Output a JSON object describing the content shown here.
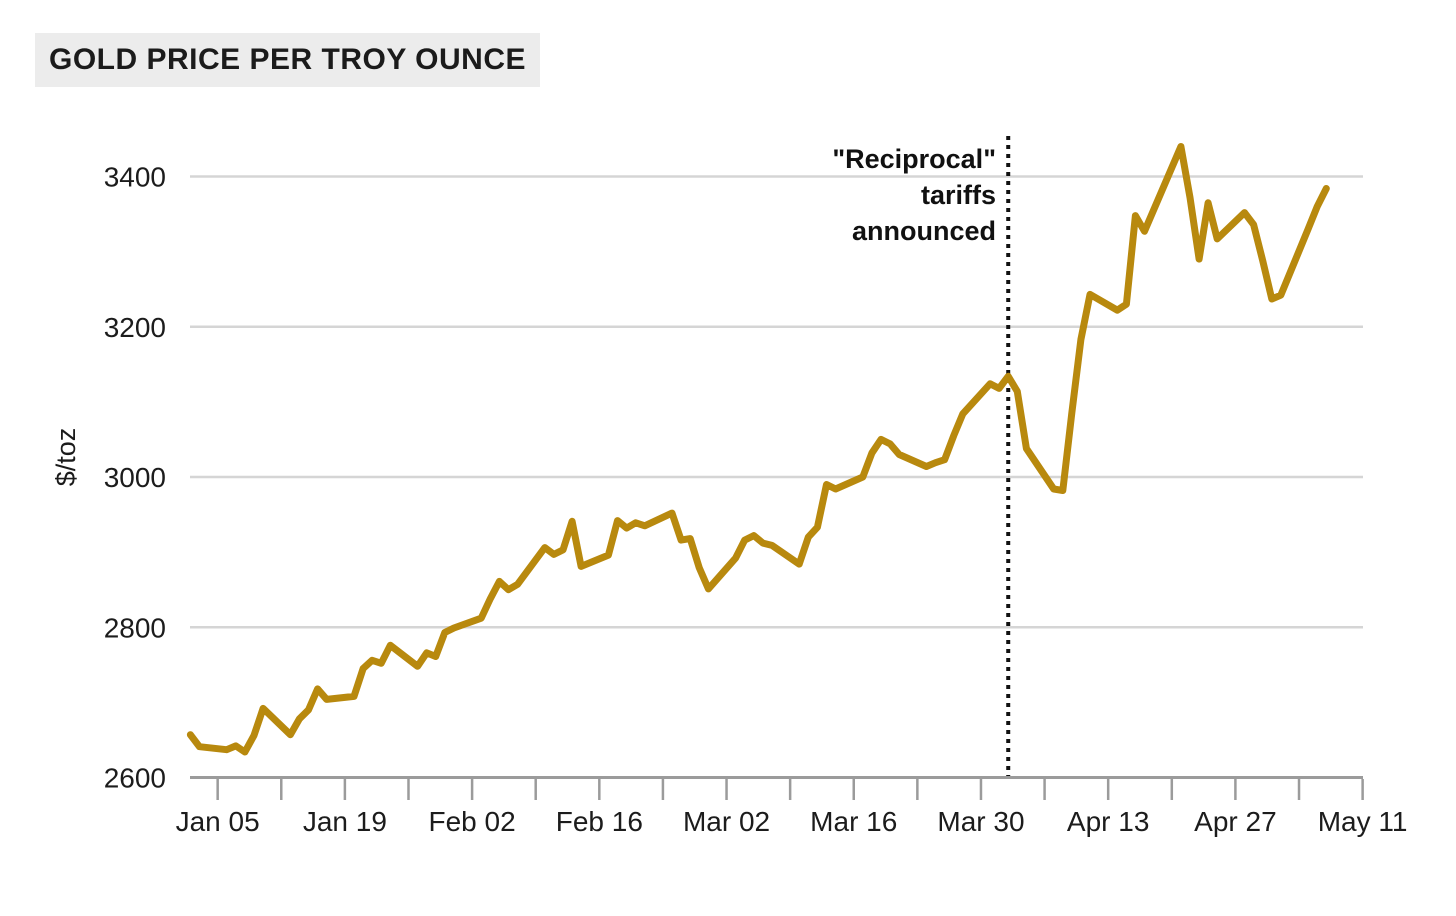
{
  "title": "GOLD PRICE PER TROY OUNCE",
  "y_axis": {
    "label": "$/toz",
    "ticks": [
      2600,
      2800,
      3000,
      3200,
      3400
    ]
  },
  "x_axis": {
    "ticks": [
      {
        "date": "Jan 05",
        "label": "Jan 05"
      },
      {
        "date": "Jan 12",
        "label": ""
      },
      {
        "date": "Jan 19",
        "label": "Jan 19"
      },
      {
        "date": "Jan 26",
        "label": ""
      },
      {
        "date": "Feb 02",
        "label": "Feb 02"
      },
      {
        "date": "Feb 09",
        "label": ""
      },
      {
        "date": "Feb 16",
        "label": "Feb 16"
      },
      {
        "date": "Feb 23",
        "label": ""
      },
      {
        "date": "Mar 02",
        "label": "Mar 02"
      },
      {
        "date": "Mar 09",
        "label": ""
      },
      {
        "date": "Mar 16",
        "label": "Mar 16"
      },
      {
        "date": "Mar 23",
        "label": ""
      },
      {
        "date": "Mar 30",
        "label": "Mar 30"
      },
      {
        "date": "Apr 06",
        "label": ""
      },
      {
        "date": "Apr 13",
        "label": "Apr 13"
      },
      {
        "date": "Apr 20",
        "label": ""
      },
      {
        "date": "Apr 27",
        "label": "Apr 27"
      },
      {
        "date": "May 04",
        "label": ""
      },
      {
        "date": "May 11",
        "label": "May 11"
      }
    ]
  },
  "annotation": {
    "line1": "\"Reciprocal\"",
    "line2": "tariffs",
    "line3": "announced",
    "event_date": "Apr 02"
  },
  "colors": {
    "line": "#B8890E",
    "grid": "#D5D5D5",
    "axis": "#9B9B9B",
    "event_line": "#111111",
    "title_bg": "#ECECEC",
    "text": "#1C1C1C"
  },
  "chart_data": {
    "type": "line",
    "title": "GOLD PRICE PER TROY OUNCE",
    "ylabel": "$/toz",
    "ylim": [
      2600,
      3460
    ],
    "x_range": [
      "Jan 02",
      "May 11"
    ],
    "grid": "horizontal-only",
    "legend": "none",
    "annotation": "\"Reciprocal\" tariffs announced — dotted vertical line at Apr 02",
    "series": [
      {
        "name": "Gold price ($ per troy ounce)",
        "points": [
          [
            "Jan 02",
            2657
          ],
          [
            "Jan 03",
            2641
          ],
          [
            "Jan 06",
            2637
          ],
          [
            "Jan 07",
            2642
          ],
          [
            "Jan 08",
            2634
          ],
          [
            "Jan 09",
            2656
          ],
          [
            "Jan 10",
            2692
          ],
          [
            "Jan 13",
            2657
          ],
          [
            "Jan 14",
            2678
          ],
          [
            "Jan 15",
            2690
          ],
          [
            "Jan 16",
            2718
          ],
          [
            "Jan 17",
            2704
          ],
          [
            "Jan 20",
            2708
          ],
          [
            "Jan 21",
            2745
          ],
          [
            "Jan 22",
            2756
          ],
          [
            "Jan 23",
            2752
          ],
          [
            "Jan 24",
            2776
          ],
          [
            "Jan 27",
            2748
          ],
          [
            "Jan 28",
            2766
          ],
          [
            "Jan 29",
            2761
          ],
          [
            "Jan 30",
            2793
          ],
          [
            "Jan 31",
            2799
          ],
          [
            "Feb 03",
            2812
          ],
          [
            "Feb 04",
            2838
          ],
          [
            "Feb 05",
            2861
          ],
          [
            "Feb 06",
            2850
          ],
          [
            "Feb 07",
            2857
          ],
          [
            "Feb 10",
            2906
          ],
          [
            "Feb 11",
            2897
          ],
          [
            "Feb 12",
            2903
          ],
          [
            "Feb 13",
            2941
          ],
          [
            "Feb 14",
            2881
          ],
          [
            "Feb 17",
            2896
          ],
          [
            "Feb 18",
            2942
          ],
          [
            "Feb 19",
            2932
          ],
          [
            "Feb 20",
            2939
          ],
          [
            "Feb 21",
            2935
          ],
          [
            "Feb 24",
            2952
          ],
          [
            "Feb 25",
            2916
          ],
          [
            "Feb 26",
            2918
          ],
          [
            "Feb 27",
            2879
          ],
          [
            "Feb 28",
            2851
          ],
          [
            "Mar 03",
            2892
          ],
          [
            "Mar 04",
            2916
          ],
          [
            "Mar 05",
            2922
          ],
          [
            "Mar 06",
            2912
          ],
          [
            "Mar 07",
            2909
          ],
          [
            "Mar 10",
            2884
          ],
          [
            "Mar 11",
            2920
          ],
          [
            "Mar 12",
            2933
          ],
          [
            "Mar 13",
            2990
          ],
          [
            "Mar 14",
            2984
          ],
          [
            "Mar 17",
            3000
          ],
          [
            "Mar 18",
            3032
          ],
          [
            "Mar 19",
            3050
          ],
          [
            "Mar 20",
            3044
          ],
          [
            "Mar 21",
            3030
          ],
          [
            "Mar 24",
            3014
          ],
          [
            "Mar 25",
            3019
          ],
          [
            "Mar 26",
            3023
          ],
          [
            "Mar 27",
            3055
          ],
          [
            "Mar 28",
            3084
          ],
          [
            "Mar 31",
            3124
          ],
          [
            "Apr 01",
            3118
          ],
          [
            "Apr 02",
            3134
          ],
          [
            "Apr 03",
            3114
          ],
          [
            "Apr 04",
            3038
          ],
          [
            "Apr 07",
            2984
          ],
          [
            "Apr 08",
            2982
          ],
          [
            "Apr 09",
            3085
          ],
          [
            "Apr 10",
            3183
          ],
          [
            "Apr 11",
            3243
          ],
          [
            "Apr 14",
            3222
          ],
          [
            "Apr 15",
            3230
          ],
          [
            "Apr 16",
            3348
          ],
          [
            "Apr 17",
            3327
          ],
          [
            "Apr 21",
            3440
          ],
          [
            "Apr 22",
            3372
          ],
          [
            "Apr 23",
            3290
          ],
          [
            "Apr 24",
            3365
          ],
          [
            "Apr 25",
            3317
          ],
          [
            "Apr 28",
            3352
          ],
          [
            "Apr 29",
            3336
          ],
          [
            "Apr 30",
            3288
          ],
          [
            "May 01",
            3237
          ],
          [
            "May 02",
            3242
          ],
          [
            "May 05",
            3330
          ],
          [
            "May 06",
            3360
          ],
          [
            "May 07",
            3384
          ]
        ]
      }
    ]
  }
}
